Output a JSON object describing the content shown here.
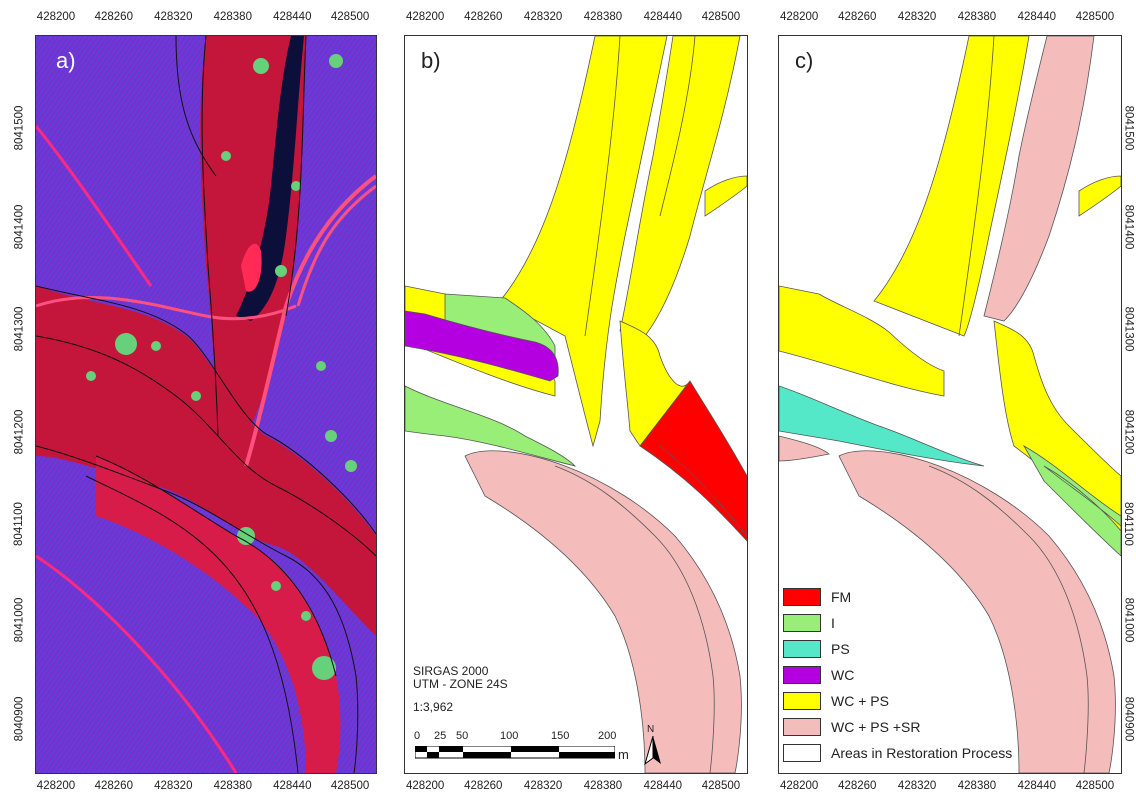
{
  "axes": {
    "x_ticks": [
      "428200",
      "428260",
      "428320",
      "428380",
      "428440",
      "428500"
    ],
    "y_ticks": [
      "8041500",
      "8041400",
      "8041300",
      "8041200",
      "8041100",
      "8041000",
      "8040900"
    ]
  },
  "panels": {
    "a": {
      "label": "a)"
    },
    "b": {
      "label": "b)"
    },
    "c": {
      "label": "c)"
    }
  },
  "map_info": {
    "datum": "SIRGAS 2000",
    "projection": "UTM - ZONE 24S",
    "scale": "1:3,962",
    "scale_bar_ticks": [
      "0",
      "25",
      "50",
      "100",
      "150",
      "200"
    ],
    "scale_bar_unit": "m",
    "north_label": "N"
  },
  "legend": [
    {
      "label": "FM",
      "color": "#ff0000"
    },
    {
      "label": "I",
      "color": "#99ee77"
    },
    {
      "label": "PS",
      "color": "#55e8c8"
    },
    {
      "label": "WC",
      "color": "#b400e0"
    },
    {
      "label": "WC + PS",
      "color": "#ffff00"
    },
    {
      "label": "WC + PS +SR",
      "color": "#f5bcbc"
    },
    {
      "label": "Areas in Restoration Process",
      "color": "#ffffff"
    }
  ],
  "colors": {
    "fm": "#ff0000",
    "i": "#99ee77",
    "ps": "#55e8c8",
    "wc": "#b400e0",
    "wc_ps": "#ffff00",
    "wc_ps_sr": "#f5bcbc"
  }
}
